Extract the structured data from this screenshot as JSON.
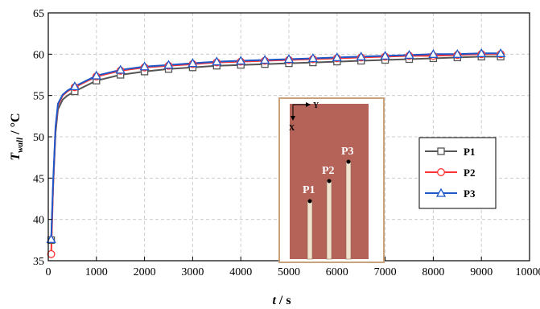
{
  "chart_data": {
    "type": "line",
    "xlabel_main": "t",
    "xlabel_unit": " / s",
    "ylabel_main": "T",
    "ylabel_sub": "wall",
    "ylabel_unit": " / °C",
    "xlim": [
      0,
      10000
    ],
    "ylim": [
      35,
      65
    ],
    "x_ticks": [
      0,
      1000,
      2000,
      3000,
      4000,
      5000,
      6000,
      7000,
      8000,
      9000,
      10000
    ],
    "y_ticks": [
      35,
      40,
      45,
      50,
      55,
      60,
      65
    ],
    "grid": true,
    "legend_position": "right",
    "x": [
      60,
      100,
      150,
      200,
      300,
      400,
      550,
      1000,
      1500,
      2000,
      2500,
      3000,
      3500,
      4000,
      4500,
      5000,
      5500,
      6000,
      6500,
      7000,
      7500,
      8000,
      8500,
      9000,
      9400
    ],
    "series": [
      {
        "name": "P1",
        "color": "#555555",
        "marker": "square",
        "values": [
          37.5,
          44.0,
          50.5,
          53.3,
          54.5,
          55.0,
          55.5,
          56.8,
          57.5,
          57.9,
          58.2,
          58.4,
          58.6,
          58.7,
          58.8,
          58.9,
          59.0,
          59.1,
          59.2,
          59.3,
          59.4,
          59.5,
          59.6,
          59.7,
          59.7
        ]
      },
      {
        "name": "P2",
        "color": "#ff3333",
        "marker": "circle",
        "values": [
          35.8,
          44.0,
          51.0,
          53.8,
          55.0,
          55.5,
          56.0,
          57.3,
          58.0,
          58.4,
          58.6,
          58.8,
          59.0,
          59.1,
          59.2,
          59.3,
          59.4,
          59.5,
          59.6,
          59.7,
          59.8,
          59.8,
          59.9,
          60.0,
          60.0
        ]
      },
      {
        "name": "P3",
        "color": "#1f57c9",
        "marker": "triangle",
        "values": [
          37.6,
          44.5,
          51.2,
          54.0,
          55.1,
          55.6,
          56.1,
          57.4,
          58.1,
          58.5,
          58.7,
          58.9,
          59.1,
          59.2,
          59.3,
          59.4,
          59.5,
          59.6,
          59.7,
          59.8,
          59.9,
          60.0,
          60.0,
          60.1,
          60.1
        ]
      }
    ],
    "marker_x": [
      60,
      550,
      1000,
      1500,
      2000,
      2500,
      3000,
      3500,
      4000,
      4500,
      5000,
      5500,
      6000,
      6500,
      7000,
      7500,
      8000,
      8500,
      9000,
      9400
    ],
    "inset": {
      "axis_x_label": "X",
      "axis_y_label": "Y",
      "probe_labels": [
        "P1",
        "P2",
        "P3"
      ],
      "background_color": "#b56258",
      "frame_color": "#c8a27a",
      "slot_color": "#f2e3cf"
    }
  }
}
